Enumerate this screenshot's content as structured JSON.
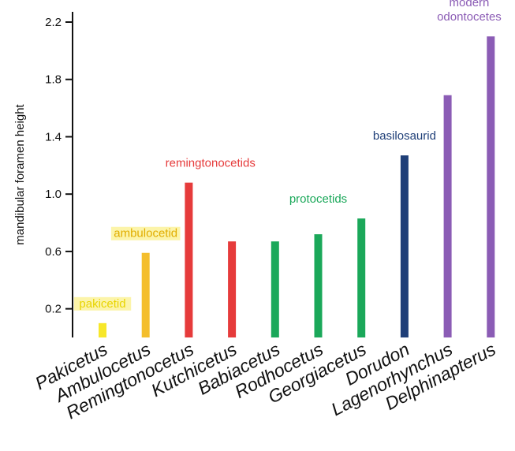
{
  "chart_data": {
    "type": "bar",
    "title": "",
    "xlabel": "",
    "ylabel": "mandibular foramen height",
    "ylim": [
      0,
      2.2
    ],
    "yticks": [
      0.2,
      0.6,
      1.0,
      1.4,
      1.8,
      2.2
    ],
    "ytick_labels": [
      "0.2",
      "0.6",
      "1.0",
      "1.4",
      "1.8",
      "2.2"
    ],
    "grid": false,
    "categories": [
      "Pakicetus",
      "Ambulocetus",
      "Remingtonocetus",
      "Kutchicetus",
      "Babiacetus",
      "Rodhocetus",
      "Georgiacetus",
      "Dorudon",
      "Lagenorhynchus",
      "Delphinapterus"
    ],
    "values": [
      0.1,
      0.59,
      1.08,
      0.67,
      0.67,
      0.72,
      0.83,
      1.27,
      1.69,
      2.1
    ],
    "bar_colors": [
      "#f7e72a",
      "#f4be2c",
      "#e63b3b",
      "#e63b3b",
      "#1ba85a",
      "#1ba85a",
      "#1ba85a",
      "#1f3f78",
      "#8b5cb5",
      "#8b5cb5"
    ],
    "groups": [
      {
        "label": "pakicetid",
        "color": "#e8d400",
        "bars": [
          0
        ],
        "highlighted": true
      },
      {
        "label": "ambulocetid",
        "color": "#e1ad00",
        "bars": [
          1
        ],
        "highlighted": true
      },
      {
        "label": "remingtonocetids",
        "color": "#e63b3b",
        "bars": [
          2,
          3
        ],
        "highlighted": false
      },
      {
        "label": "protocetids",
        "color": "#1ba85a",
        "bars": [
          4,
          5,
          6
        ],
        "highlighted": false
      },
      {
        "label": "basilosaurid",
        "color": "#1f3f78",
        "bars": [
          7
        ],
        "highlighted": false
      },
      {
        "label": "modern odontocetes",
        "color": "#8b5cb5",
        "bars": [
          8,
          9
        ],
        "highlighted": false
      }
    ]
  }
}
